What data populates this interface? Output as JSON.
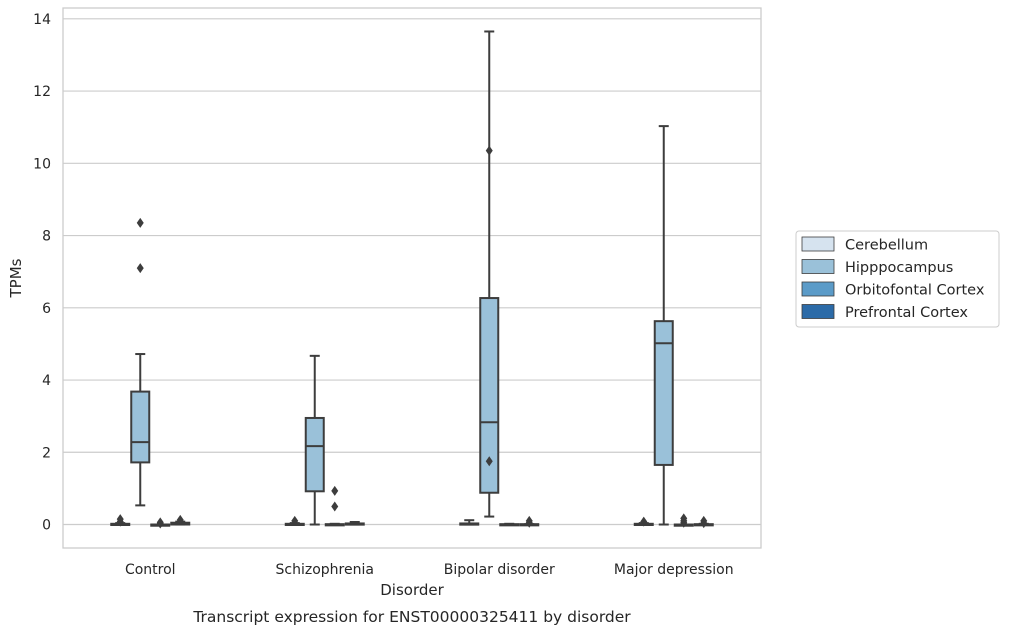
{
  "caption": "Transcript expression for ENST00000325411 by disorder",
  "chart_data": {
    "type": "box",
    "xlabel": "Disorder",
    "ylabel": "TPMs",
    "ylim": [
      -0.65,
      14.3
    ],
    "yticks": [
      0,
      2,
      4,
      6,
      8,
      10,
      12,
      14
    ],
    "grid": "y",
    "legend_position": "right",
    "categories": [
      "Control",
      "Schizophrenia",
      "Bipolar disorder",
      "Major depression"
    ],
    "series": [
      {
        "name": "Cerebellum",
        "color": "#d6e3ef",
        "boxes": [
          {
            "q1": 0,
            "median": 0,
            "q3": 0.02,
            "whislo": 0,
            "whishi": 0.04,
            "fliers": [
              0.08,
              0.15
            ]
          },
          {
            "q1": 0,
            "median": 0,
            "q3": 0.02,
            "whislo": 0,
            "whishi": 0.04,
            "fliers": [
              0.1
            ]
          },
          {
            "q1": 0,
            "median": 0,
            "q3": 0.03,
            "whislo": 0,
            "whishi": 0.12,
            "fliers": []
          },
          {
            "q1": 0,
            "median": 0,
            "q3": 0.02,
            "whislo": 0,
            "whishi": 0.04,
            "fliers": [
              0.08
            ]
          }
        ]
      },
      {
        "name": "Hipppocampus",
        "color": "#9ac1d9",
        "boxes": [
          {
            "q1": 1.72,
            "median": 2.28,
            "q3": 3.68,
            "whislo": 0.53,
            "whishi": 4.72,
            "fliers": [
              7.1,
              8.35
            ]
          },
          {
            "q1": 0.92,
            "median": 2.17,
            "q3": 2.95,
            "whislo": 0,
            "whishi": 4.67,
            "fliers": []
          },
          {
            "q1": 0.88,
            "median": 2.83,
            "q3": 6.27,
            "whislo": 0.22,
            "whishi": 13.65,
            "fliers": [
              1.75,
              10.35
            ]
          },
          {
            "q1": 1.65,
            "median": 5.02,
            "q3": 5.63,
            "whislo": 0,
            "whishi": 11.03,
            "fliers": []
          }
        ]
      },
      {
        "name": "Orbitofontal Cortex",
        "color": "#5b9bc8",
        "boxes": [
          {
            "q1": 0,
            "median": 0,
            "q3": 0,
            "whislo": 0,
            "whishi": 0,
            "fliers": [
              0.03,
              0.06
            ]
          },
          {
            "q1": 0,
            "median": 0,
            "q3": 0.01,
            "whislo": 0,
            "whishi": 0.02,
            "fliers": [
              0.5,
              0.93
            ]
          },
          {
            "q1": 0,
            "median": 0,
            "q3": 0.01,
            "whislo": 0,
            "whishi": 0.02,
            "fliers": []
          },
          {
            "q1": 0,
            "median": 0,
            "q3": 0,
            "whislo": 0,
            "whishi": 0,
            "fliers": [
              0.05,
              0.1,
              0.17
            ]
          }
        ]
      },
      {
        "name": "Prefrontal Cortex",
        "color": "#2c6ba8",
        "boxes": [
          {
            "q1": 0,
            "median": 0.02,
            "q3": 0.05,
            "whislo": 0,
            "whishi": 0.08,
            "fliers": [
              0.13
            ]
          },
          {
            "q1": 0,
            "median": 0.01,
            "q3": 0.03,
            "whislo": 0,
            "whishi": 0.07,
            "fliers": []
          },
          {
            "q1": 0,
            "median": 0,
            "q3": 0.01,
            "whislo": 0,
            "whishi": 0.01,
            "fliers": [
              0.05,
              0.1
            ]
          },
          {
            "q1": 0,
            "median": 0,
            "q3": 0.01,
            "whislo": 0,
            "whishi": 0.02,
            "fliers": [
              0.04,
              0.1
            ]
          }
        ]
      }
    ]
  }
}
